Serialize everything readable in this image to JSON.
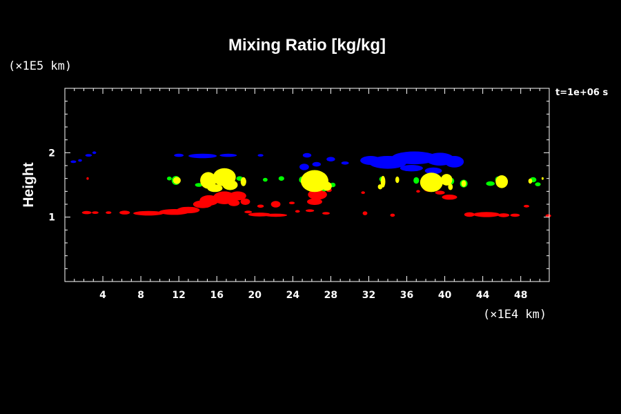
{
  "colors": {
    "background": "#000000",
    "axis": "#ffffff",
    "text": "#ffffff",
    "red": "#ff0000",
    "yellow": "#ffff00",
    "green": "#00ff00",
    "blue": "#0000ff"
  },
  "chart_data": {
    "type": "scatter",
    "title": "Mixing Ratio [kg/kg]",
    "xlabel": "",
    "ylabel": "Height",
    "x_unit_label": "(×1E4 km)",
    "y_unit_label": "(×1E5 km)",
    "time_label": "t=1e+06 s",
    "xlim": [
      0,
      51
    ],
    "ylim": [
      0,
      3
    ],
    "xticks": [
      4,
      8,
      12,
      16,
      20,
      24,
      28,
      32,
      36,
      40,
      44,
      48
    ],
    "yticks": [
      1,
      2
    ],
    "grid": false,
    "legend": "none",
    "series": [
      {
        "color": "#0000ff",
        "blobs": [
          [
            0.9,
            1.86,
            0.3,
            0.02
          ],
          [
            1.6,
            1.88,
            0.2,
            0.02
          ],
          [
            2.5,
            1.96,
            0.35,
            0.02
          ],
          [
            3.1,
            2.0,
            0.2,
            0.02
          ],
          [
            12.0,
            1.96,
            0.5,
            0.025
          ],
          [
            14.5,
            1.95,
            1.5,
            0.035
          ],
          [
            17.2,
            1.96,
            0.9,
            0.025
          ],
          [
            20.6,
            1.96,
            0.3,
            0.02
          ],
          [
            25.5,
            1.96,
            0.45,
            0.035
          ],
          [
            25.2,
            1.78,
            0.5,
            0.05
          ],
          [
            26.5,
            1.82,
            0.45,
            0.035
          ],
          [
            28.0,
            1.9,
            0.45,
            0.035
          ],
          [
            29.5,
            1.84,
            0.4,
            0.025
          ],
          [
            32.2,
            1.88,
            1.1,
            0.07
          ],
          [
            34.0,
            1.85,
            2.0,
            0.1
          ],
          [
            36.8,
            1.92,
            2.4,
            0.1
          ],
          [
            36.5,
            1.76,
            1.2,
            0.05
          ],
          [
            39.5,
            1.9,
            1.5,
            0.1
          ],
          [
            41.0,
            1.86,
            1.0,
            0.09
          ],
          [
            38.8,
            1.72,
            0.9,
            0.05
          ]
        ]
      },
      {
        "color": "#ff0000",
        "blobs": [
          [
            2.3,
            1.07,
            0.5,
            0.025
          ],
          [
            3.2,
            1.07,
            0.35,
            0.02
          ],
          [
            4.6,
            1.07,
            0.3,
            0.02
          ],
          [
            6.3,
            1.07,
            0.55,
            0.03
          ],
          [
            8.8,
            1.06,
            1.6,
            0.035
          ],
          [
            11.5,
            1.08,
            1.6,
            0.045
          ],
          [
            13.0,
            1.11,
            1.2,
            0.05
          ],
          [
            14.5,
            1.2,
            1.0,
            0.06
          ],
          [
            15.2,
            1.26,
            1.0,
            0.08
          ],
          [
            16.8,
            1.3,
            1.2,
            0.1
          ],
          [
            18.2,
            1.33,
            0.9,
            0.07
          ],
          [
            17.8,
            1.22,
            0.6,
            0.05
          ],
          [
            19.0,
            1.24,
            0.5,
            0.05
          ],
          [
            20.5,
            1.04,
            1.2,
            0.03
          ],
          [
            22.2,
            1.03,
            1.2,
            0.025
          ],
          [
            19.3,
            1.08,
            0.4,
            0.02
          ],
          [
            20.6,
            1.17,
            0.35,
            0.025
          ],
          [
            22.2,
            1.2,
            0.5,
            0.05
          ],
          [
            23.9,
            1.22,
            0.3,
            0.02
          ],
          [
            24.5,
            1.09,
            0.25,
            0.02
          ],
          [
            26.6,
            1.35,
            1.0,
            0.08
          ],
          [
            26.3,
            1.24,
            0.8,
            0.05
          ],
          [
            27.8,
            1.42,
            0.3,
            0.03
          ],
          [
            25.8,
            1.1,
            0.45,
            0.02
          ],
          [
            27.5,
            1.06,
            0.4,
            0.02
          ],
          [
            31.6,
            1.06,
            0.25,
            0.03
          ],
          [
            34.5,
            1.03,
            0.25,
            0.025
          ],
          [
            38.5,
            1.43,
            0.7,
            0.04
          ],
          [
            40.5,
            1.31,
            0.8,
            0.04
          ],
          [
            39.5,
            1.38,
            0.5,
            0.03
          ],
          [
            42.6,
            1.04,
            0.55,
            0.035
          ],
          [
            44.4,
            1.04,
            1.4,
            0.04
          ],
          [
            46.2,
            1.03,
            0.6,
            0.03
          ],
          [
            47.4,
            1.03,
            0.5,
            0.025
          ],
          [
            50.9,
            1.02,
            0.3,
            0.025
          ],
          [
            48.6,
            1.17,
            0.3,
            0.02
          ],
          [
            31.4,
            1.38,
            0.2,
            0.02
          ],
          [
            37.2,
            1.4,
            0.2,
            0.02
          ],
          [
            2.4,
            1.6,
            0.12,
            0.02
          ]
        ]
      },
      {
        "color": "#00ff00",
        "blobs": [
          [
            11.0,
            1.6,
            0.25,
            0.03
          ],
          [
            11.7,
            1.57,
            0.45,
            0.07
          ],
          [
            14.1,
            1.5,
            0.4,
            0.03
          ],
          [
            14.9,
            1.5,
            0.3,
            0.05
          ],
          [
            17.4,
            1.58,
            0.35,
            0.04
          ],
          [
            18.4,
            1.6,
            0.35,
            0.035
          ],
          [
            21.1,
            1.58,
            0.25,
            0.03
          ],
          [
            22.8,
            1.6,
            0.3,
            0.035
          ],
          [
            25.0,
            1.58,
            0.35,
            0.05
          ],
          [
            28.2,
            1.5,
            0.3,
            0.035
          ],
          [
            27.3,
            1.45,
            0.35,
            0.05
          ],
          [
            33.4,
            1.59,
            0.3,
            0.04
          ],
          [
            37.0,
            1.57,
            0.3,
            0.05
          ],
          [
            38.2,
            1.6,
            0.3,
            0.05
          ],
          [
            40.7,
            1.56,
            0.3,
            0.05
          ],
          [
            42.0,
            1.52,
            0.4,
            0.06
          ],
          [
            44.8,
            1.52,
            0.45,
            0.035
          ],
          [
            45.6,
            1.58,
            0.3,
            0.05
          ],
          [
            49.3,
            1.58,
            0.35,
            0.04
          ],
          [
            49.8,
            1.51,
            0.3,
            0.03
          ]
        ]
      },
      {
        "color": "#ffff00",
        "blobs": [
          [
            11.8,
            1.57,
            0.4,
            0.055
          ],
          [
            15.1,
            1.57,
            0.85,
            0.13
          ],
          [
            16.8,
            1.62,
            1.2,
            0.14
          ],
          [
            17.4,
            1.5,
            0.8,
            0.08
          ],
          [
            15.8,
            1.45,
            0.8,
            0.06
          ],
          [
            18.8,
            1.55,
            0.3,
            0.07
          ],
          [
            26.3,
            1.56,
            1.45,
            0.17
          ],
          [
            27.6,
            1.48,
            0.5,
            0.07
          ],
          [
            33.5,
            1.55,
            0.25,
            0.09
          ],
          [
            33.2,
            1.47,
            0.25,
            0.04
          ],
          [
            35.0,
            1.58,
            0.2,
            0.05
          ],
          [
            38.6,
            1.54,
            1.2,
            0.15
          ],
          [
            40.2,
            1.58,
            0.6,
            0.09
          ],
          [
            40.6,
            1.47,
            0.25,
            0.05
          ],
          [
            42.0,
            1.52,
            0.25,
            0.05
          ],
          [
            46.0,
            1.55,
            0.65,
            0.1
          ],
          [
            49.0,
            1.56,
            0.2,
            0.04
          ],
          [
            50.3,
            1.6,
            0.1,
            0.02
          ]
        ]
      }
    ]
  }
}
